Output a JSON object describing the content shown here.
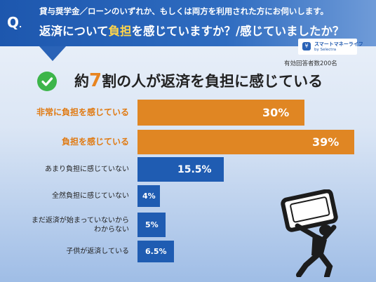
{
  "question": {
    "mark": "Q",
    "mark_dot": ".",
    "line1": "貸与奨学金／ローンのいずれか、もしくは両方を利用された方にお伺いします。",
    "line2_pre": "返済について",
    "line2_highlight": "負担",
    "line2_post": "を感じていますか？/感じていましたか？"
  },
  "logo": {
    "name": "スマートマネーライフ",
    "sub": "by Selectra"
  },
  "respondents": "有効回答者数200名",
  "headline": {
    "pre": "約",
    "number": "7",
    "post": "割の人が返済を負担に感じている"
  },
  "colors": {
    "highlight": "#e08623",
    "base": "#1f5cb2",
    "check": "#3db54a"
  },
  "chart_data": {
    "type": "bar",
    "orientation": "horizontal",
    "categories": [
      "非常に負担を感じている",
      "負担を感じている",
      "あまり負担に感じていない",
      "全然負担に感じていない",
      "まだ返済が始まっていないから\nわからない",
      "子供が返済している"
    ],
    "category_lines": [
      [
        "非常に負担を感じている"
      ],
      [
        "負担を感じている"
      ],
      [
        "あまり負担に感じていない"
      ],
      [
        "全然負担に感じていない"
      ],
      [
        "まだ返済が始まっていないから",
        "わからない"
      ],
      [
        "子供が返済している"
      ]
    ],
    "values": [
      30,
      39,
      15.5,
      4,
      5,
      6.5
    ],
    "value_labels": [
      "30%",
      "39%",
      "15.5%",
      "4%",
      "5%",
      "6.5%"
    ],
    "highlighted": [
      true,
      true,
      false,
      false,
      false,
      false
    ],
    "unit": "%",
    "xlim": [
      0,
      39
    ]
  }
}
